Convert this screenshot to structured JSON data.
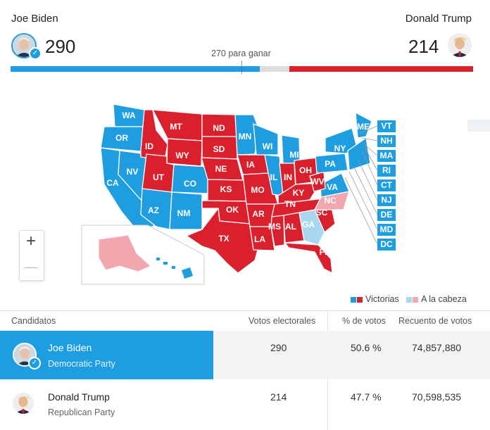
{
  "header": {
    "biden_name": "Joe Biden",
    "biden_votes": "290",
    "trump_name": "Donald Trump",
    "trump_votes": "214",
    "to_win": "270 para ganar"
  },
  "electoral_bar": {
    "biden": 290,
    "trump": 214,
    "total": 538,
    "threshold": 270
  },
  "colors": {
    "dem": "#1e9de0",
    "rep": "#d9202c",
    "dem_lead": "#a8d8f0",
    "rep_lead": "#f1a7ad"
  },
  "map": {
    "states": {
      "WA": "WA",
      "OR": "OR",
      "CA": "CA",
      "NV": "NV",
      "ID": "ID",
      "MT": "MT",
      "WY": "WY",
      "UT": "UT",
      "AZ": "AZ",
      "CO": "CO",
      "NM": "NM",
      "ND": "ND",
      "SD": "SD",
      "NE": "NE",
      "KS": "KS",
      "OK": "OK",
      "TX": "TX",
      "MN": "MN",
      "IA": "IA",
      "MO": "MO",
      "AR": "AR",
      "LA": "LA",
      "WI": "WI",
      "IL": "IL",
      "MI": "MI",
      "IN": "IN",
      "OH": "OH",
      "KY": "KY",
      "TN": "TN",
      "MS": "MS",
      "AL": "AL",
      "GA": "GA",
      "FL": "FL",
      "SC": "SC",
      "NC": "NC",
      "VA": "VA",
      "WV": "WV",
      "PA": "PA",
      "NY": "NY",
      "ME": "ME",
      "AK": "AK",
      "HI": "HI"
    },
    "east_boxes": [
      "VT",
      "NH",
      "MA",
      "RI",
      "CT",
      "NJ",
      "DE",
      "MD",
      "DC"
    ]
  },
  "zoom": {
    "in": "+",
    "out": "—"
  },
  "legend": {
    "wins": "Victorias",
    "leading": "A la cabeza"
  },
  "table": {
    "headers": {
      "candidates": "Candidatos",
      "electoral": "Votos electorales",
      "pct": "% de votos",
      "count": "Recuento de votos"
    },
    "rows": [
      {
        "name": "Joe Biden",
        "party": "Democratic Party",
        "electoral": "290",
        "pct": "50.6 %",
        "count": "74,857,880"
      },
      {
        "name": "Donald Trump",
        "party": "Republican Party",
        "electoral": "214",
        "pct": "47.7 %",
        "count": "70,598,535"
      }
    ]
  }
}
